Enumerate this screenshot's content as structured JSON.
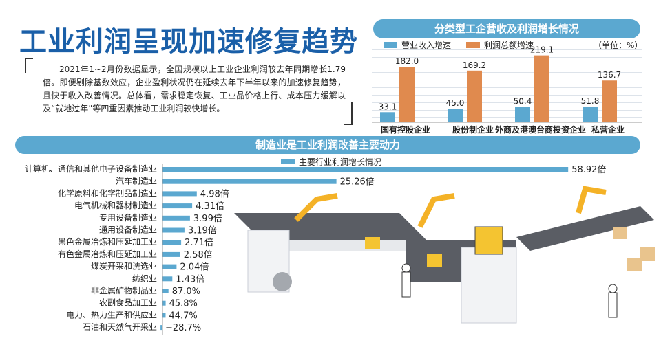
{
  "title": "工业利润呈现加速修复趋势",
  "intro": "2021年1~2月份数据显示，全国规模以上工业企业利润较去年同期增长1.79倍。即便剔除基数效应，企业盈利状况仍在延续去年下半年以来的加速修复趋势，且快于收入改善情况。总体看，需求稳定恢复、工业品价格上行、成本压力缓解以及“就地过年”等四重因素推动工业利润较快增长。",
  "chart_data": [
    {
      "type": "bar",
      "title": "分类型工企营收及利润增长情况",
      "unit": "（单位：%）",
      "categories": [
        "国有控股企业",
        "股份制企业",
        "外商及港澳台商投资企业",
        "私营企业"
      ],
      "series": [
        {
          "name": "营业收入增速",
          "color": "#5ba8d0",
          "values": [
            33.1,
            45.0,
            50.4,
            51.8
          ],
          "labels": [
            "33.1",
            "45.0",
            "50.4",
            "51.8"
          ]
        },
        {
          "name": "利润总额增速",
          "color": "#e08a4e",
          "values": [
            182.0,
            169.2,
            219.1,
            136.7
          ],
          "labels": [
            "182.0",
            "169.2",
            "219.1",
            "136.7"
          ]
        }
      ],
      "ylim": [
        0,
        225
      ],
      "grid": true,
      "legend": "top-left"
    },
    {
      "type": "bar",
      "orientation": "horizontal",
      "title": "制造业是工业利润改善主要动力",
      "legend_label": "主要行业利润增长情况",
      "color": "#5ba8d0",
      "categories": [
        "计算机、通信和其他电子设备制造业",
        "汽车制造业",
        "化学原料和化学制品制造业",
        "电气机械和器材制造业",
        "专用设备制造业",
        "通用设备制造业",
        "黑色金属冶炼和压延加工业",
        "有色金属冶炼和压延加工业",
        "煤炭开采和洗选业",
        "纺织业",
        "非金属矿物制品业",
        "农副食品加工业",
        "电力、热力生产和供应业",
        "石油和天然气开采业"
      ],
      "values": [
        58.92,
        25.26,
        4.98,
        4.31,
        3.99,
        3.19,
        2.71,
        2.58,
        2.04,
        1.43,
        0.87,
        0.458,
        0.447,
        -0.287
      ],
      "labels": [
        "58.92倍",
        "25.26倍",
        "4.98倍",
        "4.31倍",
        "3.99倍",
        "3.19倍",
        "2.71倍",
        "2.58倍",
        "2.04倍",
        "1.43倍",
        "87.0%",
        "45.8%",
        "44.7%",
        "−28.7%"
      ],
      "value_unit": "倍"
    }
  ]
}
